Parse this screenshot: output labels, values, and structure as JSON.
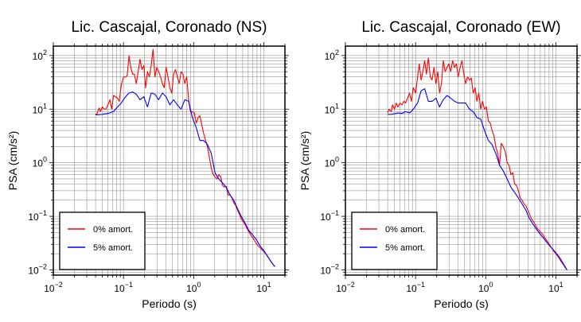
{
  "chart_data": [
    {
      "type": "line",
      "title": "Lic. Cascajal, Coronado (NS)",
      "xlabel": "Periodo (s)",
      "ylabel": "PSA (cm/s²)",
      "xscale": "log",
      "yscale": "log",
      "xlim": [
        0.01,
        20
      ],
      "ylim": [
        0.008,
        150
      ],
      "xticks": [
        {
          "base": "10",
          "exp": "−2"
        },
        {
          "base": "10",
          "exp": "−1"
        },
        {
          "base": "10",
          "exp": "0"
        },
        {
          "base": "10",
          "exp": "1"
        }
      ],
      "yticks": [
        {
          "base": "10",
          "exp": "−2"
        },
        {
          "base": "10",
          "exp": "−1"
        },
        {
          "base": "10",
          "exp": "0"
        },
        {
          "base": "10",
          "exp": "1"
        },
        {
          "base": "10",
          "exp": "2"
        }
      ],
      "grid": true,
      "legend": "bottom-left",
      "series": [
        {
          "name": "0% amort.",
          "color": "#ff0000",
          "x": [
            0.04,
            0.042,
            0.045,
            0.047,
            0.05,
            0.053,
            0.056,
            0.06,
            0.064,
            0.068,
            0.072,
            0.077,
            0.082,
            0.087,
            0.093,
            0.1,
            0.107,
            0.113,
            0.12,
            0.127,
            0.135,
            0.143,
            0.152,
            0.162,
            0.172,
            0.183,
            0.195,
            0.207,
            0.22,
            0.234,
            0.248,
            0.264,
            0.281,
            0.298,
            0.317,
            0.337,
            0.359,
            0.381,
            0.405,
            0.431,
            0.458,
            0.487,
            0.518,
            0.551,
            0.586,
            0.623,
            0.662,
            0.704,
            0.749,
            0.796,
            0.847,
            0.9,
            0.96,
            1.02,
            1.09,
            1.16,
            1.23,
            1.31,
            1.39,
            1.48,
            1.57,
            1.67,
            1.78,
            1.9,
            2.02,
            2.15,
            2.28,
            2.43,
            2.58,
            2.74,
            2.92,
            3.1,
            3.3,
            3.51,
            3.73,
            3.97,
            4.22,
            4.49,
            4.77,
            5.08,
            5.4,
            5.74,
            6.1,
            6.49,
            6.9,
            7.34,
            7.8,
            8.3,
            8.82,
            9.38,
            9.98,
            10.6,
            11.3,
            12.0,
            12.8,
            13.6,
            14.4
          ],
          "y": [
            8.0,
            8.2,
            10.5,
            9.0,
            11.0,
            10.0,
            10.0,
            12.0,
            15.0,
            10.0,
            18.0,
            17.0,
            16.0,
            14.0,
            28.0,
            40.0,
            40.0,
            42.0,
            100.0,
            60.0,
            45.0,
            45.0,
            30.0,
            50.0,
            85.0,
            55.0,
            65.0,
            25.0,
            50.0,
            40.0,
            65.0,
            130.0,
            40.0,
            60.0,
            50.0,
            40.0,
            30.0,
            25.0,
            60.0,
            40.0,
            25.0,
            20.0,
            45.0,
            55.0,
            40.0,
            30.0,
            50.0,
            45.0,
            30.0,
            40.0,
            15.0,
            9.0,
            9.0,
            8.5,
            5.5,
            7.0,
            7.5,
            5.0,
            3.5,
            2.6,
            2.0,
            1.3,
            0.8,
            0.6,
            0.55,
            0.5,
            0.6,
            0.55,
            0.38,
            0.35,
            0.36,
            0.25,
            0.25,
            0.22,
            0.18,
            0.16,
            0.13,
            0.11,
            0.09,
            0.08,
            0.07,
            0.06,
            0.052,
            0.045,
            0.04,
            0.036,
            0.031,
            0.028,
            0.026,
            0.024,
            0.022,
            0.02,
            0.018,
            0.016,
            0.014,
            0.0125,
            0.0115
          ]
        },
        {
          "name": "5% amort.",
          "color": "#0000ff",
          "x": [
            0.04,
            0.045,
            0.05,
            0.056,
            0.064,
            0.072,
            0.082,
            0.093,
            0.107,
            0.12,
            0.135,
            0.152,
            0.172,
            0.195,
            0.22,
            0.248,
            0.281,
            0.317,
            0.359,
            0.405,
            0.458,
            0.518,
            0.586,
            0.662,
            0.749,
            0.847,
            0.96,
            1.09,
            1.23,
            1.39,
            1.57,
            1.78,
            2.02,
            2.28,
            2.58,
            2.92,
            3.3,
            3.73,
            4.22,
            4.77,
            5.4,
            6.1,
            6.9,
            7.8,
            8.82,
            9.98,
            11.3,
            12.8,
            14.4
          ],
          "y": [
            7.8,
            7.9,
            8.0,
            8.2,
            8.5,
            9.0,
            11.0,
            13.0,
            17.0,
            20.0,
            21.0,
            19.0,
            15.0,
            17.0,
            11.0,
            20.0,
            19.0,
            15.0,
            20.0,
            17.0,
            12.0,
            15.0,
            12.0,
            10.0,
            15.0,
            14.0,
            7.0,
            4.5,
            2.6,
            2.6,
            2.2,
            1.5,
            0.65,
            0.5,
            0.42,
            0.35,
            0.25,
            0.2,
            0.14,
            0.1,
            0.075,
            0.055,
            0.045,
            0.037,
            0.028,
            0.023,
            0.018,
            0.014,
            0.0115
          ]
        }
      ]
    },
    {
      "type": "line",
      "title": "Lic. Cascajal, Coronado (EW)",
      "xlabel": "Periodo (s)",
      "ylabel": "PSA (cm/s²)",
      "xscale": "log",
      "yscale": "log",
      "xlim": [
        0.01,
        20
      ],
      "ylim": [
        0.008,
        150
      ],
      "xticks": [
        {
          "base": "10",
          "exp": "−2"
        },
        {
          "base": "10",
          "exp": "−1"
        },
        {
          "base": "10",
          "exp": "0"
        },
        {
          "base": "10",
          "exp": "1"
        }
      ],
      "yticks": [
        {
          "base": "10",
          "exp": "−2"
        },
        {
          "base": "10",
          "exp": "−1"
        },
        {
          "base": "10",
          "exp": "0"
        },
        {
          "base": "10",
          "exp": "1"
        },
        {
          "base": "10",
          "exp": "2"
        }
      ],
      "grid": true,
      "legend": "bottom-left",
      "series": [
        {
          "name": "0% amort.",
          "color": "#ff0000",
          "x": [
            0.04,
            0.042,
            0.045,
            0.047,
            0.05,
            0.053,
            0.056,
            0.06,
            0.064,
            0.068,
            0.072,
            0.077,
            0.082,
            0.087,
            0.093,
            0.1,
            0.107,
            0.113,
            0.12,
            0.127,
            0.135,
            0.143,
            0.152,
            0.162,
            0.172,
            0.183,
            0.195,
            0.207,
            0.22,
            0.234,
            0.248,
            0.264,
            0.281,
            0.298,
            0.317,
            0.337,
            0.359,
            0.381,
            0.405,
            0.431,
            0.458,
            0.487,
            0.518,
            0.551,
            0.586,
            0.623,
            0.662,
            0.704,
            0.749,
            0.796,
            0.847,
            0.9,
            0.96,
            1.02,
            1.09,
            1.16,
            1.23,
            1.31,
            1.39,
            1.48,
            1.57,
            1.67,
            1.78,
            1.9,
            2.02,
            2.15,
            2.28,
            2.43,
            2.58,
            2.74,
            2.92,
            3.1,
            3.3,
            3.51,
            3.73,
            3.97,
            4.22,
            4.49,
            4.77,
            5.08,
            5.4,
            5.74,
            6.1,
            6.49,
            6.9,
            7.34,
            7.8,
            8.3,
            8.82,
            9.38,
            9.98,
            10.6,
            11.3,
            12.0,
            12.8,
            13.6,
            14.4
          ],
          "y": [
            8.5,
            10.0,
            9.0,
            12.0,
            10.0,
            13.0,
            11.0,
            13.0,
            12.0,
            14.0,
            13.0,
            16.0,
            20.0,
            14.0,
            25.0,
            20.0,
            40.0,
            70.0,
            35.0,
            50.0,
            80.0,
            45.0,
            90.0,
            40.0,
            35.0,
            60.0,
            30.0,
            50.0,
            20.0,
            30.0,
            80.0,
            50.0,
            60.0,
            70.0,
            50.0,
            80.0,
            60.0,
            70.0,
            40.0,
            60.0,
            80.0,
            45.0,
            30.0,
            40.0,
            35.0,
            38.0,
            20.0,
            25.0,
            14.0,
            20.0,
            10.0,
            14.0,
            10.0,
            11.0,
            6.0,
            5.5,
            4.0,
            3.2,
            2.0,
            1.5,
            0.9,
            2.3,
            2.0,
            1.6,
            1.0,
            0.9,
            0.6,
            0.65,
            0.4,
            0.38,
            0.3,
            0.22,
            0.2,
            0.17,
            0.16,
            0.13,
            0.11,
            0.09,
            0.08,
            0.07,
            0.06,
            0.055,
            0.05,
            0.046,
            0.04,
            0.036,
            0.032,
            0.028,
            0.025,
            0.022,
            0.02,
            0.018,
            0.016,
            0.014,
            0.0125,
            0.011,
            0.01
          ]
        },
        {
          "name": "5% amort.",
          "color": "#0000ff",
          "x": [
            0.04,
            0.045,
            0.05,
            0.056,
            0.064,
            0.072,
            0.082,
            0.093,
            0.107,
            0.12,
            0.135,
            0.152,
            0.172,
            0.195,
            0.22,
            0.248,
            0.281,
            0.317,
            0.359,
            0.405,
            0.458,
            0.518,
            0.586,
            0.662,
            0.749,
            0.847,
            0.96,
            1.09,
            1.23,
            1.39,
            1.57,
            1.78,
            2.02,
            2.28,
            2.58,
            2.92,
            3.3,
            3.73,
            4.22,
            4.77,
            5.4,
            6.1,
            6.9,
            7.8,
            8.82,
            9.98,
            11.3,
            12.8,
            14.4
          ],
          "y": [
            8.0,
            8.0,
            8.2,
            8.5,
            8.3,
            9.0,
            8.5,
            10.0,
            13.0,
            22.0,
            24.0,
            14.0,
            14.0,
            16.0,
            11.0,
            15.0,
            18.0,
            16.0,
            14.0,
            13.0,
            13.0,
            13.0,
            10.0,
            9.0,
            7.0,
            6.5,
            4.0,
            2.6,
            2.2,
            1.5,
            0.9,
            0.7,
            0.5,
            0.35,
            0.28,
            0.22,
            0.17,
            0.13,
            0.09,
            0.07,
            0.055,
            0.045,
            0.037,
            0.03,
            0.025,
            0.021,
            0.017,
            0.013,
            0.01
          ]
        }
      ]
    }
  ]
}
